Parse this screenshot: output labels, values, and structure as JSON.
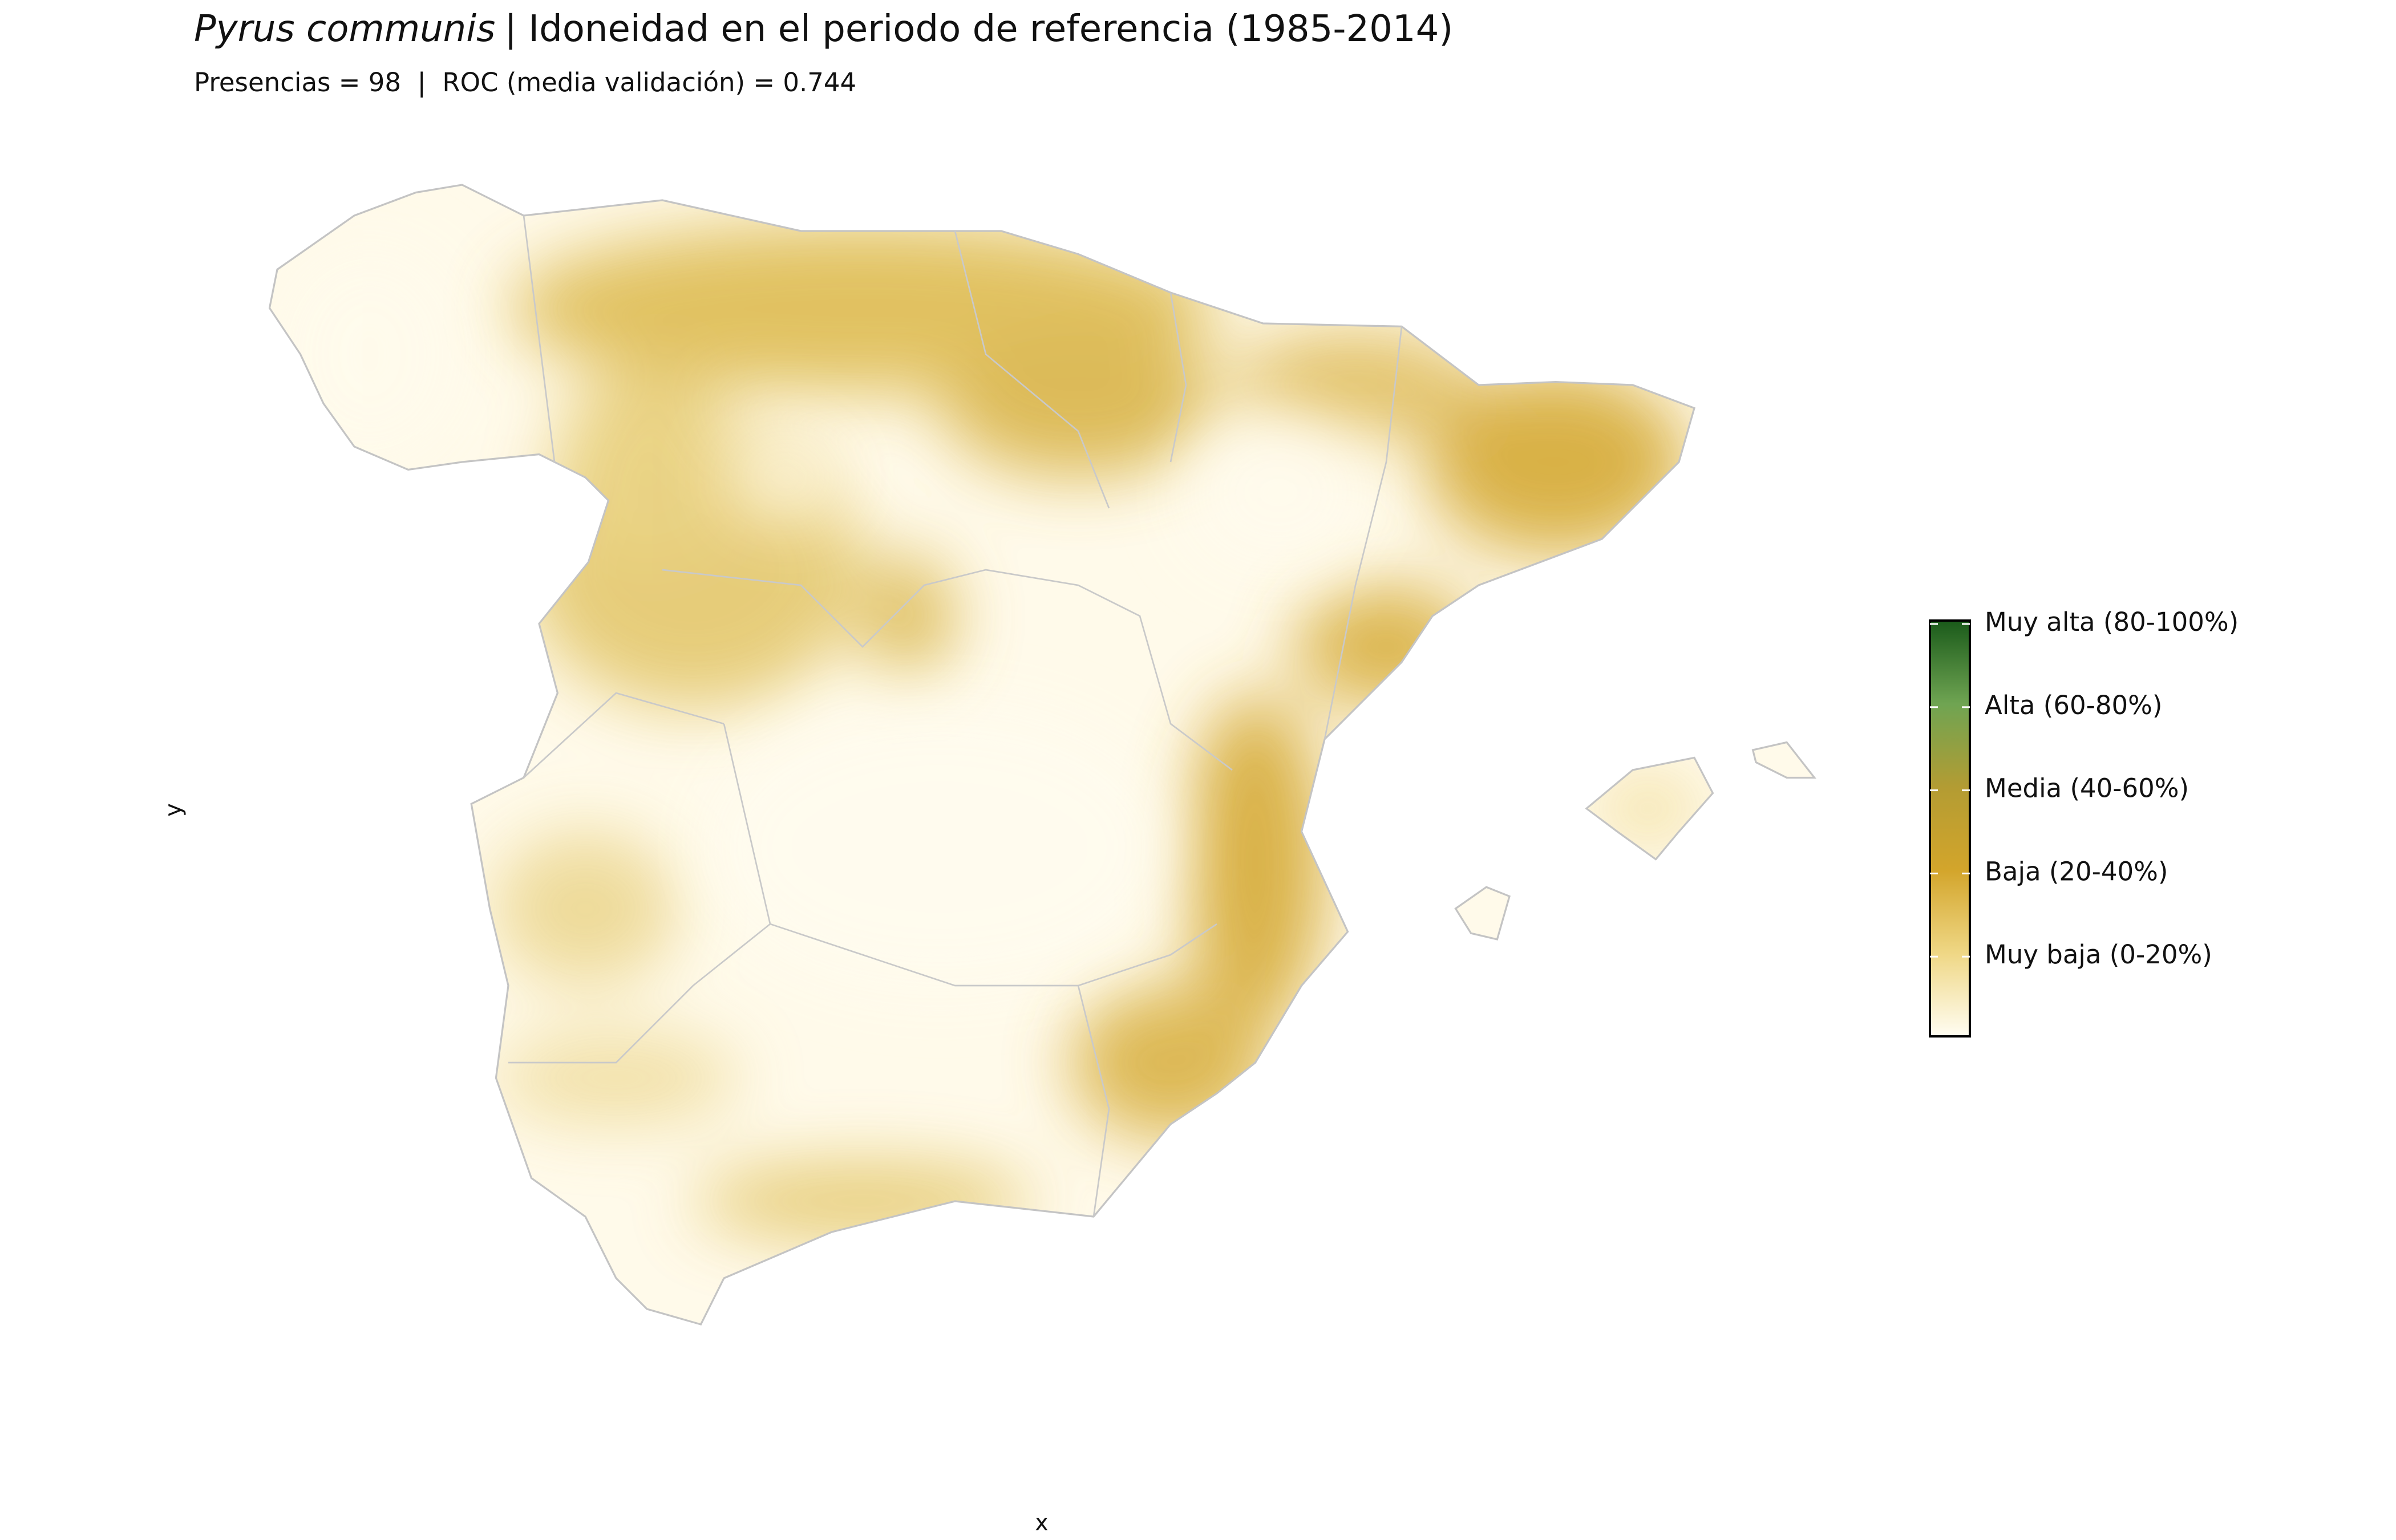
{
  "header": {
    "species": "Pyrus communis",
    "title": "| Idoneidad en el periodo de referencia (1985-2014)",
    "subtitle": "Presencias = 98  |  ROC (media validación) = 0.744"
  },
  "axes": {
    "x": "x",
    "y": "y"
  },
  "legend": {
    "labels": [
      "Muy alta (80-100%)",
      "Alta (60-80%)",
      "Media (40-60%)",
      "Baja (20-40%)",
      "Muy baja (0-20%)"
    ],
    "colors": [
      "#1a5a1a",
      "#6fa452",
      "#b39c33",
      "#d3a52b",
      "#efd785",
      "#fffdf2"
    ]
  }
}
